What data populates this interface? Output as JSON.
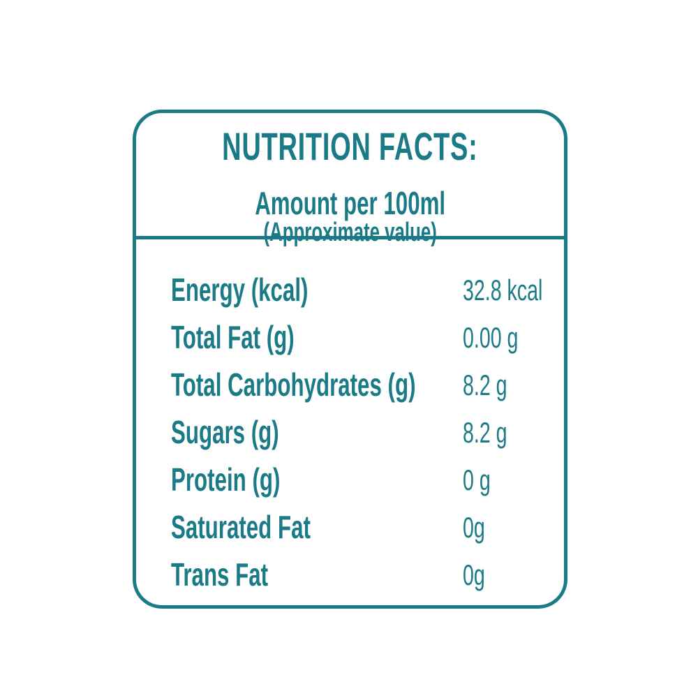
{
  "accent_color": "#1A7B87",
  "label": {
    "title": "NUTRITION FACTS:",
    "serving_line": {
      "amount": "Amount per 100ml",
      "note": "(Approximate value)"
    },
    "rows": [
      {
        "name": "Energy (kcal)",
        "value": "32.8 kcal"
      },
      {
        "name": "Total Fat (g)",
        "value": "0.00 g"
      },
      {
        "name": "Total Carbohydrates (g)",
        "value": "8.2 g"
      },
      {
        "name": "Sugars (g)",
        "value": "8.2 g"
      },
      {
        "name": "Protein (g)",
        "value": "0 g"
      },
      {
        "name": "Saturated Fat",
        "value": "0g"
      },
      {
        "name": "Trans Fat",
        "value": "0g"
      }
    ]
  }
}
